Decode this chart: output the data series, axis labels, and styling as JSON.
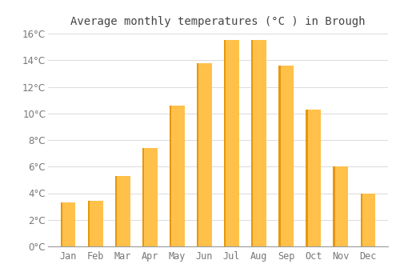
{
  "title": "Average monthly temperatures (°C ) in Brough",
  "months": [
    "Jan",
    "Feb",
    "Mar",
    "Apr",
    "May",
    "Jun",
    "Jul",
    "Aug",
    "Sep",
    "Oct",
    "Nov",
    "Dec"
  ],
  "temperatures": [
    3.3,
    3.4,
    5.3,
    7.4,
    10.6,
    13.8,
    15.5,
    15.5,
    13.6,
    10.3,
    6.0,
    4.0
  ],
  "bar_color": "#FFC14A",
  "bar_edge_color": "#E8960A",
  "background_color": "#ffffff",
  "plot_bg_color": "#ffffff",
  "grid_color": "#dddddd",
  "ylim": [
    0,
    16
  ],
  "yticks": [
    0,
    2,
    4,
    6,
    8,
    10,
    12,
    14,
    16
  ],
  "title_fontsize": 10,
  "tick_fontsize": 8.5,
  "title_color": "#444444",
  "tick_color": "#777777"
}
